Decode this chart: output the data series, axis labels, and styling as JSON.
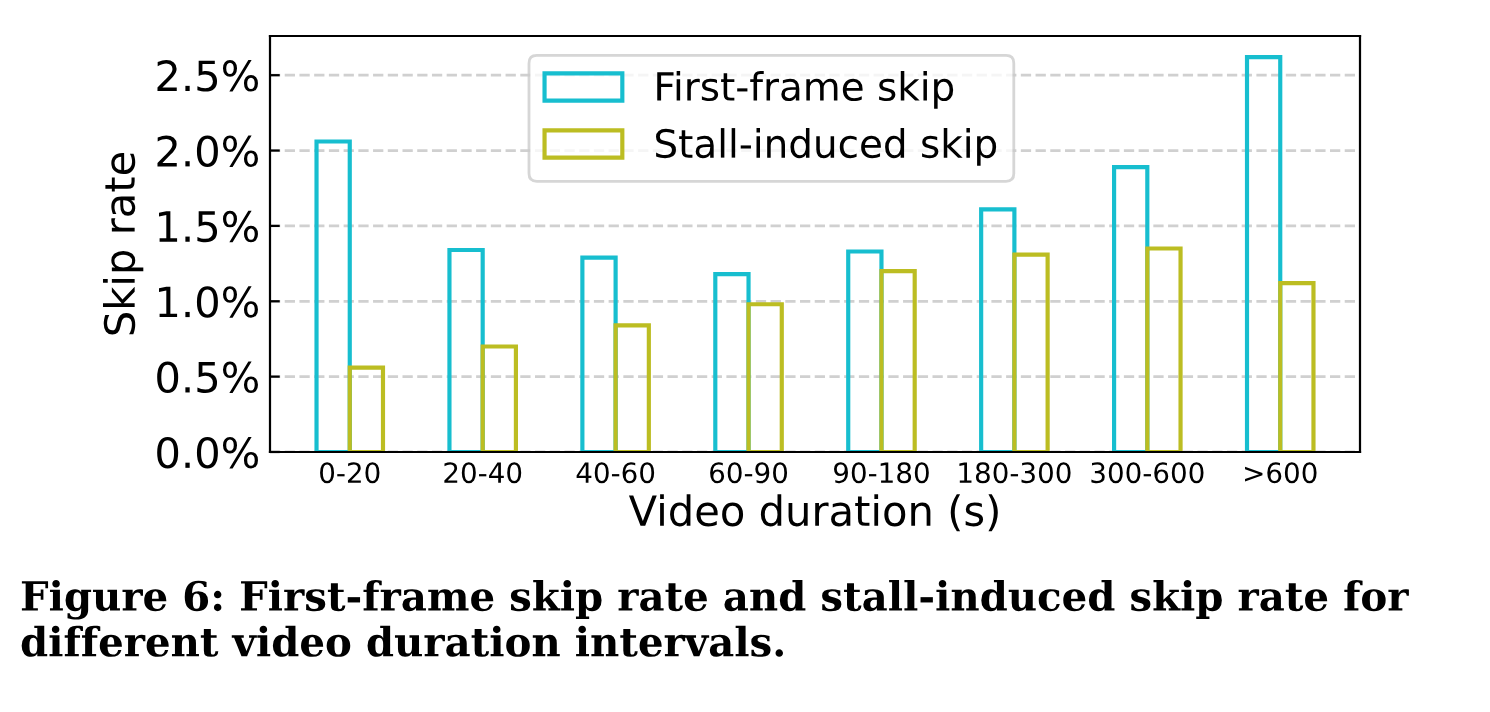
{
  "chart_data": {
    "type": "bar",
    "xlabel": "Video duration (s)",
    "ylabel": "Skip rate",
    "categories": [
      "0-20",
      "20-40",
      "40-60",
      "60-90",
      "90-180",
      "180-300",
      "300-600",
      ">600"
    ],
    "series": [
      {
        "name": "First-frame skip",
        "color": "#17becf",
        "values": [
          2.06,
          1.34,
          1.29,
          1.18,
          1.33,
          1.61,
          1.89,
          2.62
        ]
      },
      {
        "name": "Stall-induced skip",
        "color": "#bcbd22",
        "values": [
          0.56,
          0.7,
          0.84,
          0.98,
          1.2,
          1.31,
          1.35,
          1.12
        ]
      }
    ],
    "ylim": [
      0,
      2.76
    ],
    "yticks": [
      {
        "value": 0,
        "label": "0.0%"
      },
      {
        "value": 0.5,
        "label": "0.5%"
      },
      {
        "value": 1.0,
        "label": "1.0%"
      },
      {
        "value": 1.5,
        "label": "1.5%"
      },
      {
        "value": 2.0,
        "label": "2.0%"
      },
      {
        "value": 2.5,
        "label": "2.5%"
      }
    ],
    "grid": "y",
    "legend": "top",
    "annotations": [
      "Figure 6: First-frame skip rate and stall-induced skip rate for different video duration intervals."
    ]
  }
}
